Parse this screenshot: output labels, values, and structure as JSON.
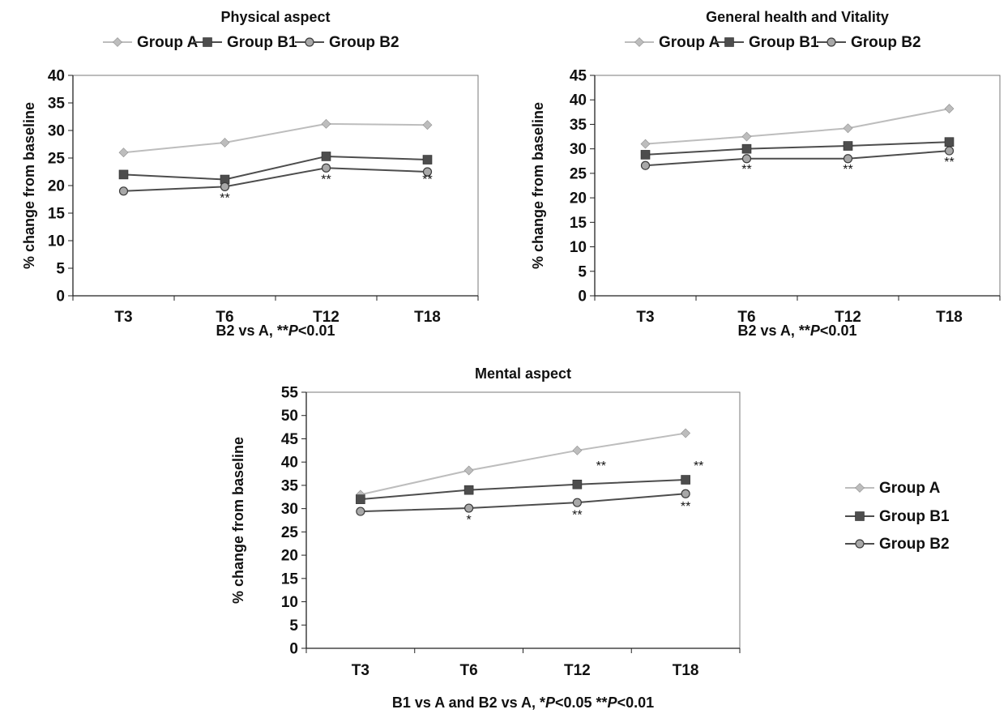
{
  "chart_data": [
    {
      "type": "line",
      "title": "Physical aspect",
      "ylabel": "% change from baseline",
      "xlabel_parts": [
        {
          "text": "B2 vs A, **",
          "italic": false
        },
        {
          "text": "P",
          "italic": true
        },
        {
          "text": "<0.01",
          "italic": false
        }
      ],
      "categories": [
        "T3",
        "T6",
        "T12",
        "T18"
      ],
      "ylim": [
        0,
        40
      ],
      "ytick_step": 5,
      "legend": "top",
      "grid": false,
      "series": [
        {
          "name": "Group A",
          "values": [
            26,
            27.8,
            31.2,
            31
          ],
          "color": "#bdbdbd",
          "marker": "diamond"
        },
        {
          "name": "Group B1",
          "values": [
            22,
            21.1,
            25.3,
            24.7
          ],
          "color": "#4d4d4d",
          "marker": "square"
        },
        {
          "name": "Group B2",
          "values": [
            19,
            19.8,
            23.2,
            22.5
          ],
          "color": "#4d4d4d",
          "marker": "circle"
        }
      ],
      "annotations": [
        {
          "text": "**",
          "category": "T6",
          "y": 17
        },
        {
          "text": "**",
          "category": "T12",
          "y": 20.4
        },
        {
          "text": "**",
          "category": "T18",
          "y": 20.4
        }
      ]
    },
    {
      "type": "line",
      "title": "General health and Vitality",
      "ylabel": "% change from baseline",
      "xlabel_parts": [
        {
          "text": "B2 vs A, **",
          "italic": false
        },
        {
          "text": "P",
          "italic": true
        },
        {
          "text": "<0.01",
          "italic": false
        }
      ],
      "categories": [
        "T3",
        "T6",
        "T12",
        "T18"
      ],
      "ylim": [
        0,
        45
      ],
      "ytick_step": 5,
      "legend": "top",
      "grid": false,
      "series": [
        {
          "name": "Group A",
          "values": [
            31,
            32.5,
            34.2,
            38.2
          ],
          "color": "#bdbdbd",
          "marker": "diamond"
        },
        {
          "name": "Group B1",
          "values": [
            28.8,
            30,
            30.6,
            31.4
          ],
          "color": "#4d4d4d",
          "marker": "square"
        },
        {
          "name": "Group B2",
          "values": [
            26.6,
            28,
            28,
            29.6
          ],
          "color": "#4d4d4d",
          "marker": "circle"
        }
      ],
      "annotations": [
        {
          "text": "**",
          "category": "T6",
          "y": 25
        },
        {
          "text": "**",
          "category": "T12",
          "y": 25
        },
        {
          "text": "**",
          "category": "T18",
          "y": 26.5
        }
      ]
    },
    {
      "type": "line",
      "title": "Mental aspect",
      "ylabel": "% change from baseline",
      "xlabel_parts": [
        {
          "text": "B1 vs A and B2 vs A, *",
          "italic": false
        },
        {
          "text": "P",
          "italic": true
        },
        {
          "text": "<0.05  **",
          "italic": false
        },
        {
          "text": "P",
          "italic": true
        },
        {
          "text": "<0.01",
          "italic": false
        }
      ],
      "categories": [
        "T3",
        "T6",
        "T12",
        "T18"
      ],
      "ylim": [
        0,
        55
      ],
      "ytick_step": 5,
      "legend": "right",
      "grid": false,
      "series": [
        {
          "name": "Group A",
          "values": [
            33,
            38.2,
            42.5,
            46.2
          ],
          "color": "#bdbdbd",
          "marker": "diamond"
        },
        {
          "name": "Group B1",
          "values": [
            32,
            34,
            35.2,
            36.2
          ],
          "color": "#4d4d4d",
          "marker": "square"
        },
        {
          "name": "Group B2",
          "values": [
            29.4,
            30.1,
            31.3,
            33.2
          ],
          "color": "#4d4d4d",
          "marker": "circle"
        }
      ],
      "annotations": [
        {
          "text": "**",
          "category": "T12",
          "y": 38.3,
          "dx": 0.22
        },
        {
          "text": "**",
          "category": "T18",
          "y": 38.3,
          "dx": 0.12
        },
        {
          "text": "*",
          "category": "T6",
          "y": 26.7
        },
        {
          "text": "**",
          "category": "T12",
          "y": 27.8
        },
        {
          "text": "**",
          "category": "T18",
          "y": 29.6
        }
      ]
    }
  ]
}
